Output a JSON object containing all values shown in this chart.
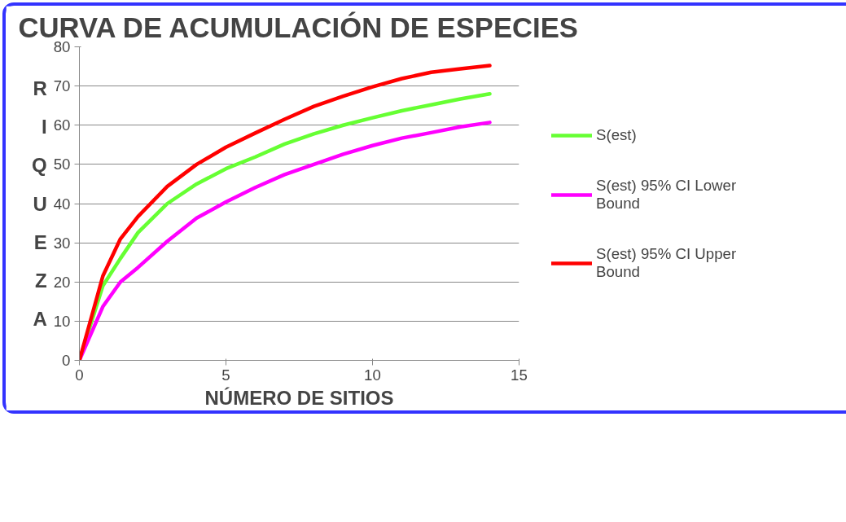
{
  "chart_data": {
    "type": "line",
    "title": "CURVA DE ACUMULACIÓN DE ESPECIES",
    "xlabel": "NÚMERO DE SITIOS",
    "ylabel": "RIQUEZA",
    "x": [
      0,
      0.8,
      1.4,
      2,
      3,
      4,
      5,
      6,
      7,
      8,
      9,
      10,
      11,
      12,
      13,
      14
    ],
    "series": [
      {
        "name": "S(est)",
        "color": "#66ff33",
        "values": [
          0,
          19,
          26,
          32.6,
          40,
          45,
          48.9,
          51.9,
          55.2,
          57.8,
          60,
          61.9,
          63.7,
          65.2,
          66.7,
          68
        ]
      },
      {
        "name": "S(est) 95% CI Lower Bound",
        "color": "#ff00ff",
        "values": [
          0,
          13.7,
          20,
          23.7,
          30.4,
          36.3,
          40.4,
          44.1,
          47.4,
          50,
          52.6,
          54.8,
          56.7,
          58.1,
          59.6,
          60.7
        ]
      },
      {
        "name": "S(est) 95% CI Upper Bound",
        "color": "#ff0000",
        "values": [
          0,
          21.5,
          31,
          36.7,
          44.4,
          50,
          54.4,
          58,
          61.5,
          64.8,
          67.4,
          69.8,
          71.9,
          73.5,
          74.4,
          75.2
        ]
      }
    ],
    "xlim": [
      0,
      15
    ],
    "ylim": [
      0,
      80
    ],
    "xticks": [
      0,
      5,
      10,
      15
    ],
    "yticks": [
      0,
      10,
      20,
      30,
      40,
      50,
      60,
      70,
      80
    ],
    "grid": "y",
    "legend": "right",
    "marker": "none",
    "line_style": "solid"
  }
}
